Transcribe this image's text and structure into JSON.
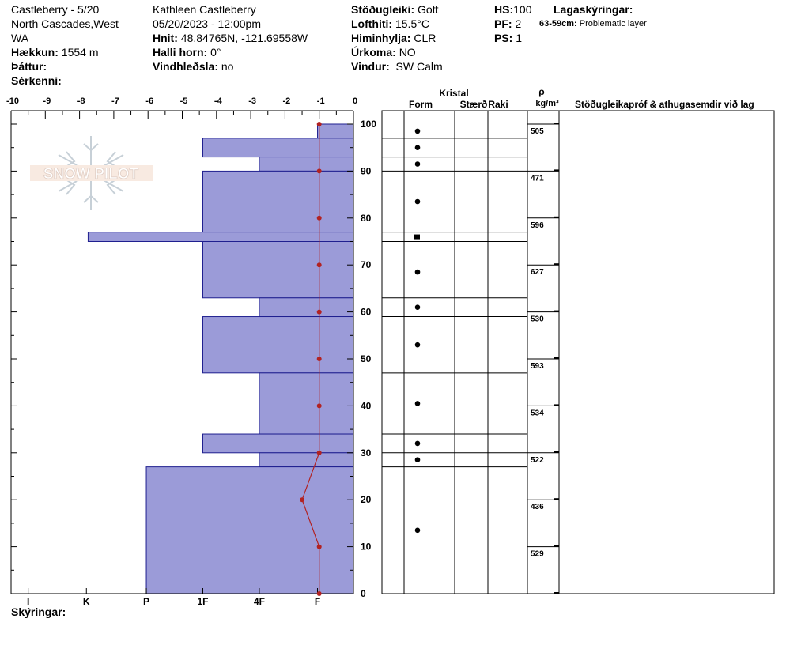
{
  "header": {
    "col1": {
      "site": "Castleberry - 5/20",
      "range": "North Cascades,West",
      "state": "WA",
      "elevation_label": "Hækkun:",
      "elevation_value": "1554 m",
      "aspect_label": "Þáttur:",
      "aspect_value": "",
      "specifics_label": "Sérkenni:",
      "specifics_value": ""
    },
    "col2": {
      "observer": "Kathleen Castleberry",
      "datetime": "05/20/2023 - 12:00pm",
      "coords_label": "Hnit:",
      "coords_value": "48.84765N, -121.69558W",
      "slope_label": "Halli horn:",
      "slope_value": "0°",
      "wind_loading_label": "Vindhleðsla:",
      "wind_loading_value": "no"
    },
    "col3": {
      "stability_label": "Stöðugleiki:",
      "stability_value": "Gott",
      "air_temp_label": "Lofthiti:",
      "air_temp_value": "15.5°C",
      "sky_label": "Himinhylja:",
      "sky_value": "CLR",
      "precip_label": "Úrkoma:",
      "precip_value": "NO",
      "wind_label": "Vindur:",
      "wind_value": "SW Calm"
    },
    "col4": {
      "hs_label": "HS:",
      "hs_value": "100",
      "pf_label": "PF:",
      "pf_value": "2",
      "ps_label": "PS:",
      "ps_value": "1"
    },
    "col5": {
      "layer_notes_label": "Lagaskýringar:",
      "layer_note_range": "63-59cm:",
      "layer_note_text": "Problematic layer"
    },
    "footer_label": "Skýringar:"
  },
  "watermark": {
    "text": "SNOW PILOT"
  },
  "chart_data": {
    "type": "snow-profile",
    "top_axis": {
      "label": "",
      "ticks": [
        "-10",
        "-9",
        "-8",
        "-7",
        "-6",
        "-5",
        "-4",
        "-3",
        "-2",
        "-1",
        "0"
      ],
      "range": [
        -10,
        0
      ],
      "unit": "°C"
    },
    "hardness_axis": {
      "ticks": [
        "I",
        "K",
        "P",
        "1F",
        "4F",
        "F"
      ]
    },
    "depth_axis": {
      "ticks": [
        "100",
        "90",
        "80",
        "70",
        "60",
        "50",
        "40",
        "30",
        "20",
        "10",
        "0"
      ],
      "range": [
        0,
        100
      ]
    },
    "hardness_layers": [
      {
        "top": 100,
        "bottom": 97,
        "hardness": -1.05
      },
      {
        "top": 97,
        "bottom": 93,
        "hardness": -4.4
      },
      {
        "top": 93,
        "bottom": 90,
        "hardness": -2.75
      },
      {
        "top": 90,
        "bottom": 77,
        "hardness": -4.4
      },
      {
        "top": 77,
        "bottom": 75,
        "hardness": -7.75
      },
      {
        "top": 75,
        "bottom": 63,
        "hardness": -4.4
      },
      {
        "top": 63,
        "bottom": 59,
        "hardness": -2.75
      },
      {
        "top": 59,
        "bottom": 47,
        "hardness": -4.4
      },
      {
        "top": 47,
        "bottom": 34,
        "hardness": -2.75
      },
      {
        "top": 34,
        "bottom": 30,
        "hardness": -4.4
      },
      {
        "top": 30,
        "bottom": 27,
        "hardness": -2.75
      },
      {
        "top": 27,
        "bottom": 0,
        "hardness": -6.05
      }
    ],
    "temperature_profile": [
      {
        "depth": 100,
        "temp": -1
      },
      {
        "depth": 90,
        "temp": -1
      },
      {
        "depth": 80,
        "temp": -1
      },
      {
        "depth": 70,
        "temp": -1
      },
      {
        "depth": 60,
        "temp": -1
      },
      {
        "depth": 50,
        "temp": -1
      },
      {
        "depth": 40,
        "temp": -1
      },
      {
        "depth": 30,
        "temp": -1
      },
      {
        "depth": 20,
        "temp": -1.5
      },
      {
        "depth": 10,
        "temp": -1
      },
      {
        "depth": 0,
        "temp": -1
      }
    ],
    "table_headers": {
      "crystal": "Kristal",
      "form": "Form",
      "size": "Stærð",
      "wetness": "Raki",
      "rho_symbol": "ρ",
      "rho_unit": "kg/m³",
      "stability_tests": "Stöðugleikapróf & athugasemdir við lag"
    },
    "layer_boundaries": [
      97,
      93,
      90,
      77,
      75,
      63,
      59,
      47,
      34,
      30,
      27
    ],
    "grain_symbols": [
      {
        "depth": 98.5,
        "shape": "dot"
      },
      {
        "depth": 95,
        "shape": "dot"
      },
      {
        "depth": 91.5,
        "shape": "dot"
      },
      {
        "depth": 83.5,
        "shape": "dot"
      },
      {
        "depth": 76,
        "shape": "square"
      },
      {
        "depth": 68.5,
        "shape": "dot"
      },
      {
        "depth": 61,
        "shape": "dot"
      },
      {
        "depth": 53,
        "shape": "dot"
      },
      {
        "depth": 40.5,
        "shape": "dot"
      },
      {
        "depth": 32,
        "shape": "dot"
      },
      {
        "depth": 28.5,
        "shape": "dot"
      },
      {
        "depth": 13.5,
        "shape": "dot"
      }
    ],
    "densities": [
      {
        "top": 100,
        "bottom": 90,
        "value": "505"
      },
      {
        "top": 90,
        "bottom": 80,
        "value": "471"
      },
      {
        "top": 80,
        "bottom": 70,
        "value": "596"
      },
      {
        "top": 70,
        "bottom": 60,
        "value": "627"
      },
      {
        "top": 60,
        "bottom": 50,
        "value": "530"
      },
      {
        "top": 50,
        "bottom": 40,
        "value": "593"
      },
      {
        "top": 40,
        "bottom": 30,
        "value": "534"
      },
      {
        "top": 30,
        "bottom": 20,
        "value": "522"
      },
      {
        "top": 20,
        "bottom": 10,
        "value": "436"
      },
      {
        "top": 10,
        "bottom": 0,
        "value": "529"
      }
    ],
    "colors": {
      "hardness_fill": "#9b9bd8",
      "hardness_stroke": "#1f1f8f",
      "temperature": "#b22222"
    }
  }
}
